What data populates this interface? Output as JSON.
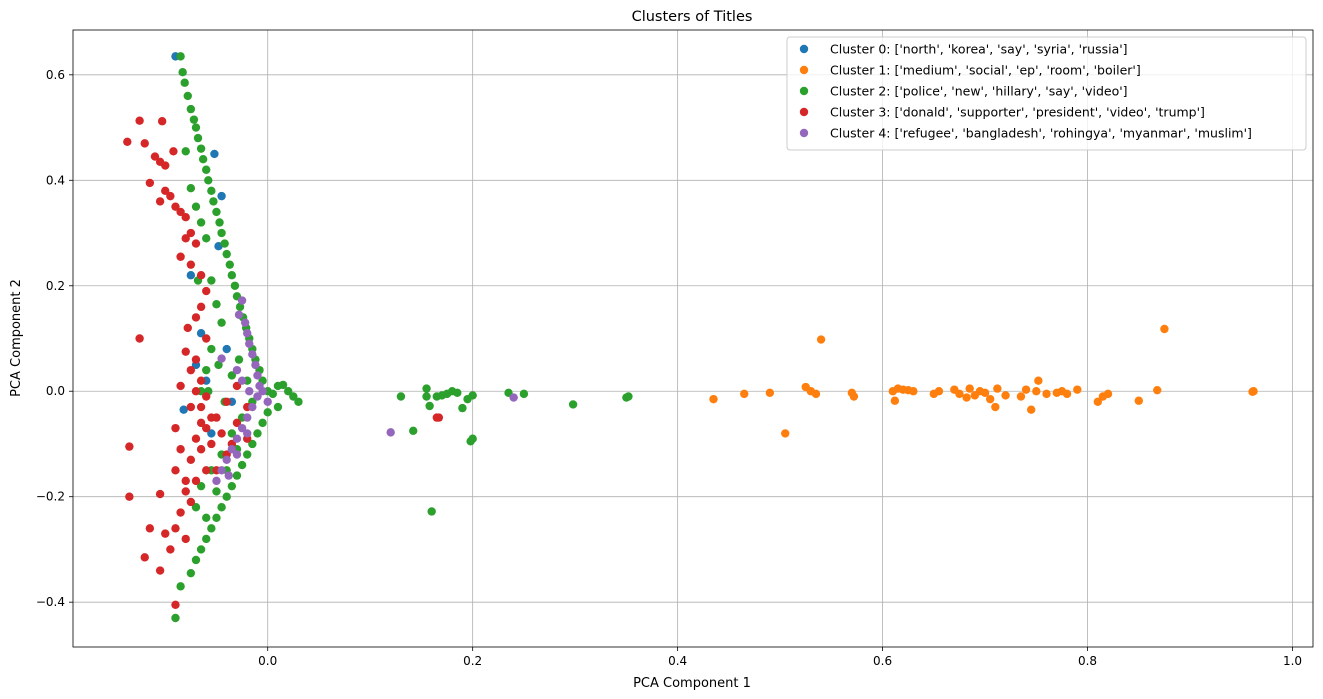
{
  "chart_data": {
    "type": "scatter",
    "title": "Clusters of Titles",
    "xlabel": "PCA Component 1",
    "ylabel": "PCA Component 2",
    "xlim": [
      -0.19,
      1.02
    ],
    "ylim": [
      -0.485,
      0.685
    ],
    "grid": true,
    "legend_position": "top-right",
    "x_ticks": [
      0.0,
      0.2,
      0.4,
      0.6,
      0.8,
      1.0
    ],
    "x_tick_labels": [
      "0.0",
      "0.2",
      "0.4",
      "0.6",
      "0.8",
      "1.0"
    ],
    "y_ticks": [
      -0.4,
      -0.2,
      0.0,
      0.2,
      0.4,
      0.6
    ],
    "y_tick_labels": [
      "−0.4",
      "−0.2",
      "0.0",
      "0.2",
      "0.4",
      "0.6"
    ],
    "series": [
      {
        "name": "Cluster 0: ['north', 'korea', 'say', 'syria', 'russia']",
        "color": "#1f77b4",
        "points": [
          [
            -0.09,
            0.635
          ],
          [
            -0.052,
            0.45
          ],
          [
            -0.045,
            0.37
          ],
          [
            -0.048,
            0.275
          ],
          [
            -0.065,
            0.11
          ],
          [
            -0.082,
            -0.035
          ],
          [
            -0.06,
            0.02
          ],
          [
            -0.07,
            0.05
          ],
          [
            -0.035,
            -0.02
          ],
          [
            -0.055,
            -0.08
          ],
          [
            -0.04,
            0.08
          ],
          [
            -0.075,
            0.22
          ]
        ]
      },
      {
        "name": "Cluster 1: ['medium', 'social', 'ep', 'room', 'boiler']",
        "color": "#ff7f0e",
        "points": [
          [
            0.435,
            -0.015
          ],
          [
            0.465,
            -0.005
          ],
          [
            0.49,
            -0.003
          ],
          [
            0.505,
            -0.08
          ],
          [
            0.525,
            0.008
          ],
          [
            0.53,
            0.0
          ],
          [
            0.535,
            -0.005
          ],
          [
            0.54,
            0.098
          ],
          [
            0.57,
            -0.003
          ],
          [
            0.572,
            -0.01
          ],
          [
            0.61,
            0.0
          ],
          [
            0.612,
            -0.018
          ],
          [
            0.615,
            0.005
          ],
          [
            0.62,
            0.003
          ],
          [
            0.625,
            0.002
          ],
          [
            0.63,
            0.0
          ],
          [
            0.65,
            -0.005
          ],
          [
            0.655,
            0.0
          ],
          [
            0.67,
            0.003
          ],
          [
            0.675,
            -0.005
          ],
          [
            0.682,
            -0.012
          ],
          [
            0.685,
            0.005
          ],
          [
            0.69,
            -0.008
          ],
          [
            0.695,
            0.0
          ],
          [
            0.7,
            -0.003
          ],
          [
            0.705,
            -0.015
          ],
          [
            0.71,
            -0.03
          ],
          [
            0.712,
            0.005
          ],
          [
            0.72,
            -0.008
          ],
          [
            0.735,
            -0.01
          ],
          [
            0.74,
            0.003
          ],
          [
            0.745,
            -0.035
          ],
          [
            0.75,
            0.0
          ],
          [
            0.752,
            0.02
          ],
          [
            0.76,
            -0.005
          ],
          [
            0.77,
            -0.003
          ],
          [
            0.775,
            0.0
          ],
          [
            0.78,
            -0.005
          ],
          [
            0.79,
            0.003
          ],
          [
            0.81,
            -0.02
          ],
          [
            0.815,
            -0.01
          ],
          [
            0.82,
            -0.005
          ],
          [
            0.85,
            -0.018
          ],
          [
            0.868,
            0.002
          ],
          [
            0.875,
            0.118
          ],
          [
            0.962,
            0.0
          ],
          [
            0.961,
            -0.001
          ]
        ]
      },
      {
        "name": "Cluster 2: ['police', 'new', 'hillary', 'say', 'video']",
        "color": "#2ca02c",
        "points": [
          [
            -0.085,
            0.635
          ],
          [
            -0.083,
            0.605
          ],
          [
            -0.081,
            0.585
          ],
          [
            -0.078,
            0.56
          ],
          [
            -0.075,
            0.535
          ],
          [
            -0.072,
            0.515
          ],
          [
            -0.07,
            0.5
          ],
          [
            -0.068,
            0.48
          ],
          [
            -0.065,
            0.46
          ],
          [
            -0.063,
            0.44
          ],
          [
            -0.06,
            0.42
          ],
          [
            -0.058,
            0.4
          ],
          [
            -0.055,
            0.38
          ],
          [
            -0.053,
            0.36
          ],
          [
            -0.05,
            0.34
          ],
          [
            -0.047,
            0.32
          ],
          [
            -0.045,
            0.3
          ],
          [
            -0.042,
            0.28
          ],
          [
            -0.04,
            0.26
          ],
          [
            -0.037,
            0.24
          ],
          [
            -0.035,
            0.22
          ],
          [
            -0.032,
            0.2
          ],
          [
            -0.03,
            0.18
          ],
          [
            -0.027,
            0.16
          ],
          [
            -0.024,
            0.14
          ],
          [
            -0.021,
            0.12
          ],
          [
            -0.018,
            0.1
          ],
          [
            -0.015,
            0.08
          ],
          [
            -0.012,
            0.06
          ],
          [
            -0.008,
            0.04
          ],
          [
            -0.005,
            0.02
          ],
          [
            0.0,
            0.0
          ],
          [
            0.005,
            -0.005
          ],
          [
            0.01,
            0.01
          ],
          [
            0.015,
            0.012
          ],
          [
            0.02,
            0.0
          ],
          [
            0.025,
            -0.01
          ],
          [
            0.03,
            -0.02
          ],
          [
            0.01,
            -0.03
          ],
          [
            0.0,
            -0.04
          ],
          [
            -0.005,
            -0.06
          ],
          [
            -0.01,
            -0.08
          ],
          [
            -0.015,
            -0.1
          ],
          [
            -0.02,
            -0.12
          ],
          [
            -0.025,
            -0.14
          ],
          [
            -0.03,
            -0.16
          ],
          [
            -0.035,
            -0.18
          ],
          [
            -0.04,
            -0.2
          ],
          [
            -0.045,
            -0.22
          ],
          [
            -0.05,
            -0.24
          ],
          [
            -0.055,
            -0.26
          ],
          [
            -0.06,
            -0.28
          ],
          [
            -0.065,
            -0.3
          ],
          [
            -0.07,
            -0.32
          ],
          [
            -0.075,
            -0.345
          ],
          [
            -0.085,
            -0.37
          ],
          [
            -0.09,
            -0.43
          ],
          [
            -0.08,
            0.455
          ],
          [
            -0.075,
            0.385
          ],
          [
            -0.07,
            0.35
          ],
          [
            -0.065,
            0.32
          ],
          [
            -0.06,
            0.29
          ],
          [
            -0.055,
            0.21
          ],
          [
            -0.068,
            0.21
          ],
          [
            -0.05,
            0.165
          ],
          [
            -0.045,
            0.13
          ],
          [
            -0.055,
            0.08
          ],
          [
            -0.06,
            0.04
          ],
          [
            -0.065,
            0.0
          ],
          [
            -0.058,
            0.0
          ],
          [
            -0.048,
            0.05
          ],
          [
            -0.042,
            -0.02
          ],
          [
            -0.035,
            0.03
          ],
          [
            -0.028,
            0.06
          ],
          [
            -0.02,
            0.02
          ],
          [
            -0.015,
            -0.02
          ],
          [
            -0.025,
            -0.05
          ],
          [
            -0.035,
            -0.08
          ],
          [
            -0.045,
            -0.12
          ],
          [
            -0.055,
            -0.15
          ],
          [
            -0.065,
            -0.18
          ],
          [
            -0.07,
            -0.22
          ],
          [
            -0.06,
            -0.24
          ],
          [
            -0.05,
            -0.19
          ],
          [
            -0.04,
            -0.15
          ],
          [
            -0.03,
            -0.11
          ],
          [
            0.13,
            -0.01
          ],
          [
            0.142,
            -0.075
          ],
          [
            0.155,
            0.005
          ],
          [
            0.155,
            -0.01
          ],
          [
            0.158,
            -0.028
          ],
          [
            0.16,
            -0.228
          ],
          [
            0.165,
            -0.01
          ],
          [
            0.17,
            -0.008
          ],
          [
            0.175,
            -0.005
          ],
          [
            0.18,
            0.0
          ],
          [
            0.185,
            -0.003
          ],
          [
            0.19,
            -0.032
          ],
          [
            0.195,
            -0.015
          ],
          [
            0.198,
            -0.095
          ],
          [
            0.2,
            -0.09
          ],
          [
            0.2,
            -0.008
          ],
          [
            0.235,
            -0.003
          ],
          [
            0.25,
            -0.005
          ],
          [
            0.298,
            -0.025
          ],
          [
            0.35,
            -0.012
          ],
          [
            0.352,
            -0.01
          ]
        ]
      },
      {
        "name": "Cluster 3: ['donald', 'supporter', 'president', 'video', 'trump']",
        "color": "#d62728",
        "points": [
          [
            -0.137,
            0.473
          ],
          [
            -0.125,
            0.513
          ],
          [
            -0.12,
            0.47
          ],
          [
            -0.11,
            0.445
          ],
          [
            -0.105,
            0.435
          ],
          [
            -0.1,
            0.428
          ],
          [
            -0.103,
            0.512
          ],
          [
            -0.092,
            0.455
          ],
          [
            -0.115,
            0.395
          ],
          [
            -0.1,
            0.38
          ],
          [
            -0.095,
            0.37
          ],
          [
            -0.105,
            0.36
          ],
          [
            -0.09,
            0.35
          ],
          [
            -0.085,
            0.34
          ],
          [
            -0.08,
            0.33
          ],
          [
            -0.075,
            0.3
          ],
          [
            -0.08,
            0.29
          ],
          [
            -0.07,
            0.28
          ],
          [
            -0.085,
            0.255
          ],
          [
            -0.075,
            0.24
          ],
          [
            -0.065,
            0.22
          ],
          [
            -0.06,
            0.19
          ],
          [
            -0.065,
            0.16
          ],
          [
            -0.07,
            0.14
          ],
          [
            -0.078,
            0.12
          ],
          [
            -0.06,
            0.1
          ],
          [
            -0.125,
            0.1
          ],
          [
            -0.08,
            0.075
          ],
          [
            -0.07,
            0.06
          ],
          [
            -0.075,
            0.04
          ],
          [
            -0.065,
            0.02
          ],
          [
            -0.07,
            0.0
          ],
          [
            -0.06,
            -0.01
          ],
          [
            -0.065,
            -0.03
          ],
          [
            -0.055,
            -0.05
          ],
          [
            -0.06,
            -0.07
          ],
          [
            -0.07,
            -0.09
          ],
          [
            -0.065,
            -0.11
          ],
          [
            -0.075,
            -0.13
          ],
          [
            -0.06,
            -0.15
          ],
          [
            -0.07,
            -0.17
          ],
          [
            -0.08,
            -0.19
          ],
          [
            -0.075,
            -0.21
          ],
          [
            -0.085,
            -0.23
          ],
          [
            -0.09,
            -0.26
          ],
          [
            -0.08,
            -0.28
          ],
          [
            -0.095,
            -0.3
          ],
          [
            -0.135,
            -0.105
          ],
          [
            -0.135,
            -0.2
          ],
          [
            -0.105,
            -0.195
          ],
          [
            -0.115,
            -0.26
          ],
          [
            -0.12,
            -0.315
          ],
          [
            -0.1,
            -0.27
          ],
          [
            -0.105,
            -0.34
          ],
          [
            -0.09,
            -0.405
          ],
          [
            -0.05,
            -0.05
          ],
          [
            -0.045,
            -0.08
          ],
          [
            -0.04,
            -0.12
          ],
          [
            -0.05,
            -0.15
          ],
          [
            -0.035,
            -0.1
          ],
          [
            -0.03,
            -0.06
          ],
          [
            -0.02,
            -0.09
          ],
          [
            -0.04,
            -0.02
          ],
          [
            -0.03,
            0.01
          ],
          [
            -0.02,
            -0.03
          ],
          [
            -0.055,
            -0.1
          ],
          [
            -0.065,
            -0.06
          ],
          [
            -0.075,
            -0.03
          ],
          [
            -0.085,
            0.01
          ],
          [
            -0.09,
            -0.07
          ],
          [
            -0.085,
            -0.11
          ],
          [
            -0.09,
            -0.15
          ],
          [
            -0.08,
            -0.17
          ],
          [
            0.167,
            -0.05
          ],
          [
            0.165,
            -0.05
          ]
        ]
      },
      {
        "name": "Cluster 4: ['refugee', 'bangladesh', 'rohingya', 'myanmar', 'muslim']",
        "color": "#9467bd",
        "points": [
          [
            -0.025,
            0.172
          ],
          [
            -0.028,
            0.145
          ],
          [
            -0.022,
            0.13
          ],
          [
            -0.02,
            0.11
          ],
          [
            -0.018,
            0.09
          ],
          [
            -0.015,
            0.07
          ],
          [
            -0.012,
            0.05
          ],
          [
            -0.01,
            0.03
          ],
          [
            -0.008,
            0.01
          ],
          [
            -0.01,
            -0.01
          ],
          [
            -0.015,
            -0.03
          ],
          [
            -0.02,
            -0.05
          ],
          [
            -0.025,
            -0.07
          ],
          [
            -0.03,
            -0.09
          ],
          [
            -0.035,
            -0.11
          ],
          [
            -0.04,
            -0.13
          ],
          [
            -0.045,
            -0.15
          ],
          [
            -0.05,
            -0.17
          ],
          [
            -0.038,
            -0.16
          ],
          [
            -0.03,
            -0.12
          ],
          [
            -0.02,
            -0.08
          ],
          [
            -0.045,
            0.062
          ],
          [
            0.12,
            -0.078
          ],
          [
            0.24,
            -0.012
          ],
          [
            -0.005,
            0.0
          ],
          [
            0.0,
            -0.02
          ],
          [
            -0.018,
            0.0
          ],
          [
            -0.025,
            0.02
          ],
          [
            -0.03,
            0.04
          ]
        ]
      }
    ]
  }
}
